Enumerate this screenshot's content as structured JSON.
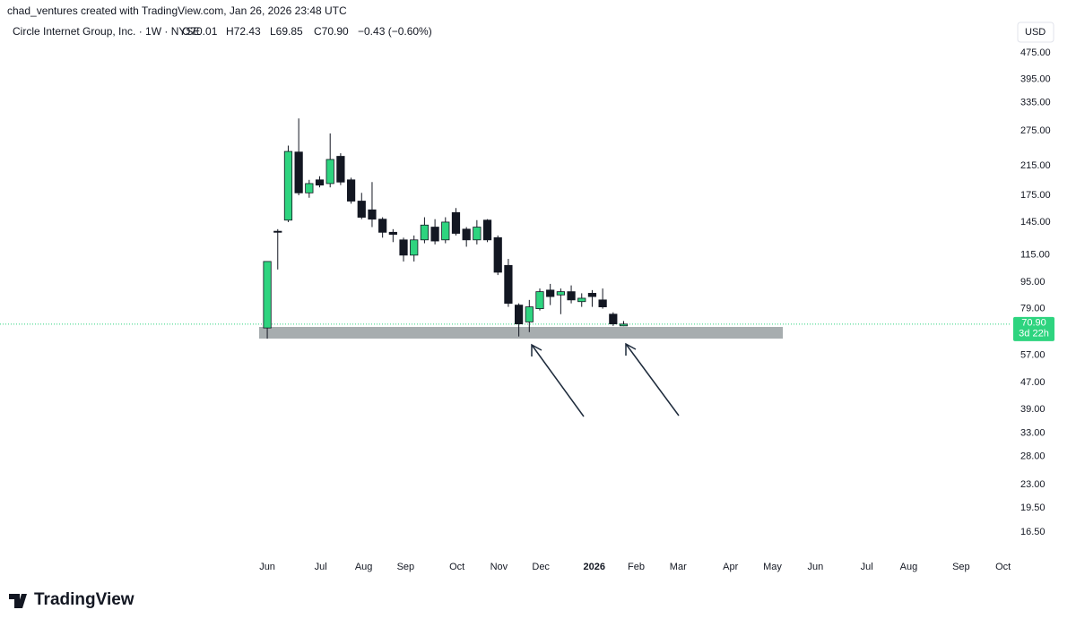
{
  "header": {
    "attribution": "chad_ventures created with TradingView.com, Jan 26, 2026 23:48 UTC",
    "brand": "TradingView"
  },
  "chart_data": {
    "type": "candlestick",
    "title": "Circle Internet Group, Inc. · 1W · NYSE",
    "ohlc_labels": [
      "O70.01",
      "H72.43",
      "L69.85",
      "C70.90"
    ],
    "change": "−0.43 (−0.60%)",
    "currency": "USD",
    "x": [
      0,
      1,
      2,
      3,
      4,
      5,
      6,
      7,
      8,
      9,
      10,
      11,
      12,
      13,
      14,
      15,
      16,
      17,
      18,
      19,
      20,
      21,
      22,
      23,
      24,
      25,
      26,
      27,
      28,
      29,
      30,
      31,
      32,
      33,
      34
    ],
    "open": [
      69,
      136,
      147,
      237,
      178,
      195,
      190,
      230,
      195,
      168,
      158,
      148,
      135,
      128,
      115,
      128,
      140,
      128,
      155,
      138,
      128,
      147,
      130,
      107,
      81,
      72,
      79,
      90,
      87,
      89,
      83,
      88,
      84,
      76,
      70.01
    ],
    "high": [
      110,
      138,
      248,
      300,
      195,
      200,
      270,
      235,
      198,
      178,
      192,
      150,
      138,
      130,
      132,
      150,
      148,
      150,
      160,
      140,
      147,
      148,
      132,
      112,
      82,
      84,
      91,
      94,
      91,
      93,
      88,
      90,
      91,
      77,
      72.43
    ],
    "low": [
      64,
      104,
      145,
      175,
      172,
      185,
      185,
      188,
      165,
      148,
      140,
      130,
      126,
      110,
      110,
      125,
      124,
      125,
      132,
      122,
      124,
      126,
      100,
      80,
      65,
      67,
      78,
      81,
      76,
      82,
      80,
      80,
      79,
      70,
      69.85
    ],
    "close": [
      110,
      135,
      238,
      178,
      190,
      188,
      225,
      192,
      168,
      150,
      148,
      135,
      133,
      115,
      128,
      142,
      127,
      145,
      134,
      128,
      140,
      128,
      102,
      82,
      71,
      80,
      89,
      86,
      89,
      84,
      85,
      86,
      80,
      71,
      70.9
    ],
    "up_color": "#2ed47f",
    "down_color": "#131722",
    "log_scale": true,
    "ylim": [
      14,
      519
    ],
    "yticks": [
      {
        "value": 475,
        "label": "475.00"
      },
      {
        "value": 395,
        "label": "395.00"
      },
      {
        "value": 335,
        "label": "335.00"
      },
      {
        "value": 275,
        "label": "275.00"
      },
      {
        "value": 215,
        "label": "215.00"
      },
      {
        "value": 175,
        "label": "175.00"
      },
      {
        "value": 145,
        "label": "145.00"
      },
      {
        "value": 115,
        "label": "115.00"
      },
      {
        "value": 95,
        "label": "95.00"
      },
      {
        "value": 79,
        "label": "79.00"
      },
      {
        "value": 57,
        "label": "57.00"
      },
      {
        "value": 47,
        "label": "47.00"
      },
      {
        "value": 39,
        "label": "39.00"
      },
      {
        "value": 33,
        "label": "33.00"
      },
      {
        "value": 28,
        "label": "28.00"
      },
      {
        "value": 23,
        "label": "23.00"
      },
      {
        "value": 19.5,
        "label": "19.50"
      },
      {
        "value": 16.5,
        "label": "16.50"
      }
    ],
    "xlim": [
      -25.5,
      71
    ],
    "xticks": [
      {
        "value": 0,
        "label": "Jun"
      },
      {
        "value": 5.1,
        "label": "Jul"
      },
      {
        "value": 9.2,
        "label": "Aug"
      },
      {
        "value": 13.2,
        "label": "Sep"
      },
      {
        "value": 18.1,
        "label": "Oct"
      },
      {
        "value": 22.1,
        "label": "Nov"
      },
      {
        "value": 26.1,
        "label": "Dec"
      },
      {
        "value": 31.2,
        "label": "2026"
      },
      {
        "value": 35.2,
        "label": "Feb"
      },
      {
        "value": 39.2,
        "label": "Mar"
      },
      {
        "value": 44.2,
        "label": "Apr"
      },
      {
        "value": 48.2,
        "label": "May"
      },
      {
        "value": 52.3,
        "label": "Jun"
      },
      {
        "value": 57.2,
        "label": "Jul"
      },
      {
        "value": 61.2,
        "label": "Aug"
      },
      {
        "value": 66.2,
        "label": "Sep"
      },
      {
        "value": 70.2,
        "label": "Oct"
      }
    ],
    "last_price": {
      "value": 70.9,
      "label": "70.90"
    },
    "countdown": "3d 22h"
  }
}
